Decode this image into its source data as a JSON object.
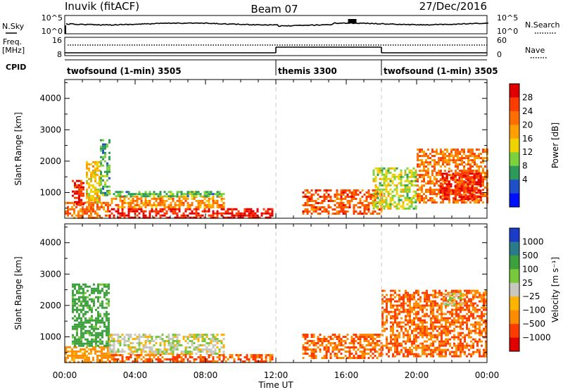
{
  "header": {
    "station": "Inuvik (fitACF)",
    "beam": "Beam 07",
    "date": "27/Dec/2016"
  },
  "status_panels": {
    "nsky_label": "N.Sky",
    "nsearch_label": "N.Search",
    "noise_ticks_left": [
      "10^5",
      "10^0"
    ],
    "noise_ticks_right": [
      "10^5",
      "10^0"
    ],
    "freq_label": "Freq.",
    "freq_unit": "[MHz]",
    "freq_ticks": [
      "16",
      "8"
    ],
    "nave_label": "Nave",
    "nave_ticks": [
      "60",
      "0"
    ],
    "cpid_label": "CPID",
    "modes": [
      {
        "name": "twofsound (1-min) 3505",
        "start_hour": 0,
        "end_hour": 12
      },
      {
        "name": "themis 3300",
        "start_hour": 12,
        "end_hour": 18
      },
      {
        "name": "twofsound (1-min) 3505",
        "start_hour": 18,
        "end_hour": 24
      }
    ]
  },
  "chart_data": [
    {
      "type": "heatmap",
      "panel": "power",
      "ylabel": "Slant Range [km]",
      "ylim": [
        180,
        4600
      ],
      "xlim": [
        0,
        24
      ],
      "yticks": [
        "1000",
        "2000",
        "3000",
        "4000"
      ],
      "colorbar": {
        "label": "Power [dB]",
        "ticks": [
          "28",
          "24",
          "20",
          "16",
          "12",
          "8",
          "4"
        ],
        "colors": [
          "#e00000",
          "#ff3c00",
          "#ff6e00",
          "#ffa000",
          "#f0d200",
          "#7cd23c",
          "#2e9a5a",
          "#2050c8",
          "#0010ff"
        ]
      },
      "regions": [
        {
          "x": [
            0,
            2.6
          ],
          "y": [
            200,
            700
          ],
          "level": 20
        },
        {
          "x": [
            0.4,
            1.1
          ],
          "y": [
            600,
            1400
          ],
          "level": 26
        },
        {
          "x": [
            1.2,
            2.0
          ],
          "y": [
            700,
            2000
          ],
          "level": 14
        },
        {
          "x": [
            2.0,
            2.5
          ],
          "y": [
            900,
            2700
          ],
          "level": 6
        },
        {
          "x": [
            2.5,
            11.8
          ],
          "y": [
            200,
            500
          ],
          "level": 27
        },
        {
          "x": [
            2.5,
            9.0
          ],
          "y": [
            500,
            900
          ],
          "level": 18
        },
        {
          "x": [
            2.5,
            9.0
          ],
          "y": [
            900,
            1050
          ],
          "level": 6
        },
        {
          "x": [
            13.5,
            18
          ],
          "y": [
            300,
            1100
          ],
          "level": 22
        },
        {
          "x": [
            17.5,
            20
          ],
          "y": [
            500,
            1800
          ],
          "level": 10
        },
        {
          "x": [
            20,
            24
          ],
          "y": [
            700,
            2400
          ],
          "level": 20
        },
        {
          "x": [
            21.3,
            23.7
          ],
          "y": [
            800,
            1700
          ],
          "level": 27
        }
      ]
    },
    {
      "type": "heatmap",
      "panel": "velocity",
      "ylabel": "Slant Range [km]",
      "xlabel": "Time UT",
      "ylim": [
        180,
        4600
      ],
      "xlim": [
        0,
        24
      ],
      "yticks": [
        "1000",
        "2000",
        "3000",
        "4000"
      ],
      "xticks": [
        "00:00",
        "04:00",
        "08:00",
        "12:00",
        "16:00",
        "20:00",
        "00:00"
      ],
      "colorbar": {
        "label": "Velocity [m s⁻¹]",
        "ticks": [
          "1000",
          "500",
          "100",
          "25",
          "−25",
          "−100",
          "−500",
          "−1000"
        ],
        "colors": [
          "#1a3cc8",
          "#2a7a8a",
          "#3ca03c",
          "#78c83c",
          "#c8c8c0",
          "#ffb400",
          "#ff8c00",
          "#ff3c00",
          "#e00000"
        ]
      },
      "regions": [
        {
          "x": [
            0,
            2.6
          ],
          "y": [
            200,
            700
          ],
          "level": -100
        },
        {
          "x": [
            0.4,
            2.5
          ],
          "y": [
            700,
            2700
          ],
          "level": 100
        },
        {
          "x": [
            2.5,
            9.0
          ],
          "y": [
            450,
            1100
          ],
          "level": 0
        },
        {
          "x": [
            2.5,
            11.8
          ],
          "y": [
            200,
            450
          ],
          "level": -300
        },
        {
          "x": [
            13.5,
            18
          ],
          "y": [
            300,
            1100
          ],
          "level": -300
        },
        {
          "x": [
            18,
            24
          ],
          "y": [
            400,
            2500
          ],
          "level": -300
        },
        {
          "x": [
            21.5,
            22.6
          ],
          "y": [
            2000,
            2400
          ],
          "level": 0
        }
      ]
    }
  ]
}
